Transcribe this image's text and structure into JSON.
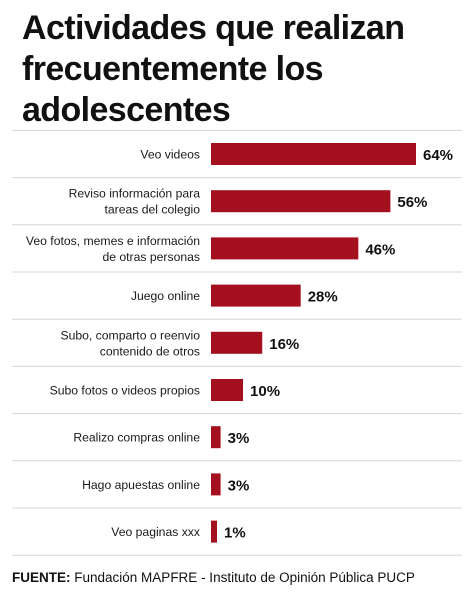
{
  "chart_data": {
    "type": "bar",
    "orientation": "horizontal",
    "title": "Actividades que realizan frecuentemente los adolescentes",
    "categories": [
      "Veo videos",
      "Reviso información para tareas del colegio",
      "Veo fotos, memes e información de otras personas",
      "Juego online",
      "Subo, comparto o reenvio contenido de otros",
      "Subo fotos o videos propios",
      "Realizo compras online",
      "Hago apuestas online",
      "Veo paginas xxx"
    ],
    "category_lines": [
      [
        "Veo videos"
      ],
      [
        "Reviso información para",
        "tareas del colegio"
      ],
      [
        "Veo fotos, memes e información",
        "de otras personas"
      ],
      [
        "Juego online"
      ],
      [
        "Subo, comparto o reenvio",
        "contenido de otros"
      ],
      [
        "Subo fotos o videos propios"
      ],
      [
        "Realizo compras online"
      ],
      [
        "Hago apuestas online"
      ],
      [
        "Veo paginas xxx"
      ]
    ],
    "values": [
      64,
      56,
      46,
      28,
      16,
      10,
      3,
      3,
      1
    ],
    "value_suffix": "%",
    "xlim": [
      0,
      64
    ],
    "bar_color": "#a5101f",
    "grid": false,
    "legend": "none"
  },
  "source": {
    "label": "FUENTE:",
    "text": "Fundación MAPFRE - Instituto de Opinión Pública PUCP"
  }
}
